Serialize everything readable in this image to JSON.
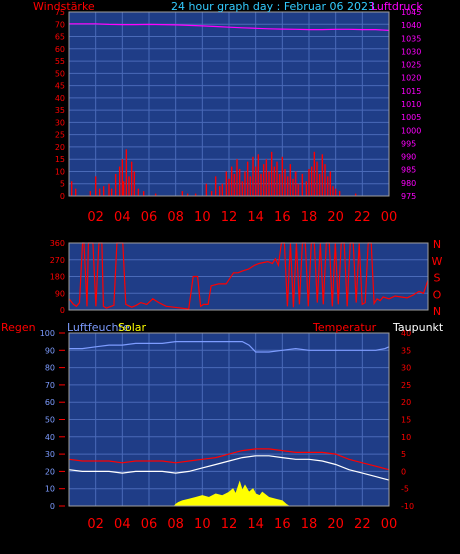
{
  "header": {
    "title": "24 hour graph day : Februar 06 2023",
    "left_label": "Windstärke",
    "right_label": "Luftdruck"
  },
  "colors": {
    "background": "#000000",
    "plot_bg": "#1f3d87",
    "grid": "#4a6ab8",
    "frame": "#a0a0a0",
    "red": "#ff0000",
    "magenta": "#ff00ff",
    "cyan": "#33ccff",
    "yellow": "#ffff00",
    "white": "#ffffff",
    "blue_humidity": "#7d9cff"
  },
  "chart_data": [
    {
      "id": "wind_pressure",
      "type": "line",
      "title": "24 hour graph day : Februar 06 2023",
      "ylabel_left": "Windstärke",
      "ylabel_right": "Luftdruck",
      "ylim_left": [
        0,
        75
      ],
      "ylim_right": [
        975,
        1045
      ],
      "y_ticks_left": [
        0,
        5,
        10,
        15,
        20,
        25,
        30,
        35,
        40,
        45,
        50,
        55,
        60,
        65,
        70,
        75
      ],
      "y_ticks_right": [
        975,
        980,
        985,
        990,
        995,
        1000,
        1005,
        1010,
        1015,
        1020,
        1025,
        1030,
        1035,
        1040,
        1045
      ],
      "x_ticks": [
        "02",
        "04",
        "06",
        "08",
        "10",
        "12",
        "14",
        "16",
        "18",
        "20",
        "22",
        "00"
      ],
      "series": [
        {
          "name": "Luftdruck",
          "axis": "right",
          "x": [
            0,
            1,
            2,
            3,
            4,
            5,
            6,
            7,
            8,
            9,
            10,
            11,
            12,
            13,
            14,
            15,
            16,
            17,
            18,
            19,
            20,
            21,
            22,
            23,
            24
          ],
          "values": [
            1040.5,
            1040.5,
            1040.5,
            1040.3,
            1040.2,
            1040.2,
            1040.3,
            1040.2,
            1040.1,
            1039.9,
            1039.7,
            1039.5,
            1039.2,
            1039.0,
            1038.8,
            1038.6,
            1038.5,
            1038.4,
            1038.3,
            1038.3,
            1038.4,
            1038.4,
            1038.3,
            1038.3,
            1038.0
          ]
        },
        {
          "name": "Windstärke",
          "axis": "left",
          "x": [
            0.2,
            0.5,
            1.6,
            2.0,
            2.3,
            2.6,
            3.0,
            3.2,
            3.5,
            3.8,
            4.0,
            4.1,
            4.3,
            4.5,
            4.7,
            4.9,
            5.2,
            5.6,
            6.5,
            8.5,
            8.9,
            9.5,
            10.3,
            10.7,
            11.0,
            11.3,
            11.5,
            11.8,
            12.0,
            12.2,
            12.4,
            12.6,
            12.8,
            13.0,
            13.2,
            13.4,
            13.6,
            13.8,
            14.0,
            14.2,
            14.4,
            14.6,
            14.8,
            15.0,
            15.2,
            15.4,
            15.6,
            15.8,
            16.0,
            16.2,
            16.4,
            16.6,
            16.8,
            17.0,
            17.2,
            17.5,
            17.8,
            18.0,
            18.2,
            18.4,
            18.6,
            18.8,
            19.0,
            19.2,
            19.4,
            19.6,
            19.8,
            20.0,
            20.3,
            21.5
          ],
          "values": [
            6,
            3,
            2,
            8,
            3,
            4,
            5,
            3,
            9,
            12,
            15,
            6,
            19,
            8,
            14,
            10,
            3,
            2,
            1,
            2,
            1,
            1,
            5,
            2,
            8,
            4,
            5,
            10,
            7,
            12,
            9,
            15,
            11,
            6,
            10,
            14,
            8,
            16,
            12,
            17,
            9,
            13,
            15,
            10,
            18,
            12,
            14,
            9,
            16,
            11,
            8,
            13,
            7,
            10,
            5,
            9,
            6,
            11,
            12,
            18,
            14,
            9,
            17,
            13,
            8,
            10,
            4,
            3,
            2,
            1
          ]
        }
      ]
    },
    {
      "id": "wind_direction",
      "type": "line",
      "ylim": [
        0,
        360
      ],
      "y_ticks": [
        0,
        90,
        180,
        270,
        360
      ],
      "compass_labels": [
        "N",
        "W",
        "S",
        "O",
        "N"
      ],
      "series": [
        {
          "name": "Windrichtung",
          "x": [
            0.0,
            0.3,
            0.5,
            0.7,
            0.9,
            1.0,
            1.2,
            1.3,
            1.6,
            1.8,
            2.0,
            2.2,
            2.3,
            2.5,
            3.0,
            3.2,
            3.6,
            3.8,
            4.2,
            4.5,
            4.8,
            5.2,
            5.6,
            6.0,
            6.5,
            7.0,
            7.5,
            8.0,
            8.3,
            8.6,
            8.8,
            9.0,
            9.3,
            9.5,
            10.0,
            10.5,
            11.0,
            11.3,
            11.6,
            12.0,
            12.4,
            12.7,
            13.0,
            13.3,
            13.6,
            13.8,
            14.0,
            14.2,
            14.4,
            14.6,
            14.8,
            15.0,
            15.2,
            15.4,
            15.6,
            15.8,
            16.0,
            16.2,
            16.4,
            16.6,
            16.8,
            17.0,
            17.2,
            17.4,
            17.6,
            17.8,
            18.0,
            18.2,
            18.4,
            18.6,
            18.8,
            19.0,
            19.2,
            19.4,
            19.6,
            19.8,
            20.0,
            20.2,
            20.4,
            20.6,
            20.8,
            21.0,
            21.4,
            21.8,
            22.2,
            22.6,
            23.0,
            23.4,
            23.7,
            24.0
          ],
          "values": [
            60,
            30,
            20,
            40,
            360,
            360,
            20,
            360,
            360,
            20,
            360,
            360,
            20,
            10,
            25,
            360,
            360,
            30,
            15,
            25,
            40,
            30,
            60,
            40,
            20,
            15,
            10,
            5,
            180,
            180,
            20,
            30,
            30,
            130,
            140,
            140,
            200,
            200,
            210,
            220,
            240,
            250,
            255,
            260,
            250,
            275,
            240,
            360,
            360,
            20,
            360,
            15,
            360,
            30,
            360,
            360,
            20,
            360,
            360,
            40,
            360,
            30,
            360,
            360,
            20,
            360,
            30,
            360,
            360,
            20,
            360,
            360,
            40,
            360,
            30,
            40,
            360,
            360,
            35,
            60,
            50,
            70,
            60,
            75,
            70,
            65,
            80,
            100,
            90,
            160
          ]
        }
      ]
    },
    {
      "id": "humidity_temperature",
      "type": "line",
      "ylim_left": [
        0,
        100
      ],
      "ylim_right": [
        -10,
        40
      ],
      "y_ticks_left": [
        0,
        10,
        20,
        30,
        40,
        50,
        60,
        70,
        80,
        90,
        100
      ],
      "y_ticks_right": [
        -10,
        -5,
        0,
        5,
        10,
        15,
        20,
        25,
        30,
        35,
        40
      ],
      "x_ticks": [
        "02",
        "04",
        "06",
        "08",
        "10",
        "12",
        "14",
        "16",
        "18",
        "20",
        "22",
        "00"
      ],
      "labels": {
        "regen": "Regen",
        "luftfeuchte": "Luftfeuchte",
        "solar": "Solar",
        "temperatur": "Temperatur",
        "taupunkt": "Taupunkt"
      },
      "series": [
        {
          "name": "Luftfeuchte",
          "axis": "left",
          "x": [
            0,
            1,
            2,
            3,
            4,
            5,
            6,
            7,
            8,
            9,
            10,
            11,
            12,
            13,
            13.5,
            14,
            15,
            16,
            17,
            18,
            19,
            20,
            21,
            22,
            23,
            23.7,
            24
          ],
          "values": [
            91,
            91,
            92,
            93,
            93,
            94,
            94,
            94,
            95,
            95,
            95,
            95,
            95,
            95,
            93,
            89,
            89,
            90,
            91,
            90,
            90,
            90,
            90,
            90,
            90,
            91,
            92
          ]
        },
        {
          "name": "Temperatur",
          "axis": "right",
          "x": [
            0,
            1,
            2,
            3,
            4,
            5,
            6,
            7,
            8,
            9,
            10,
            11,
            12,
            13,
            14,
            15,
            16,
            17,
            18,
            19,
            20,
            21,
            22,
            23,
            24
          ],
          "values": [
            3.5,
            3.0,
            3.0,
            3.0,
            2.5,
            3.0,
            3.0,
            3.0,
            2.5,
            3.0,
            3.5,
            4.0,
            5.0,
            6.0,
            6.5,
            6.5,
            6.0,
            5.5,
            5.5,
            5.5,
            5.0,
            3.5,
            2.5,
            1.5,
            0.5
          ]
        },
        {
          "name": "Taupunkt",
          "axis": "right",
          "x": [
            0,
            1,
            2,
            3,
            4,
            5,
            6,
            7,
            8,
            9,
            10,
            11,
            12,
            13,
            14,
            15,
            16,
            17,
            18,
            19,
            20,
            21,
            22,
            23,
            24
          ],
          "values": [
            0.5,
            0.0,
            0.0,
            0.0,
            -0.5,
            0.0,
            0.0,
            0.0,
            -0.5,
            0.0,
            1.0,
            2.0,
            3.0,
            4.0,
            4.5,
            4.5,
            4.0,
            3.5,
            3.5,
            3.0,
            2.0,
            0.5,
            -0.5,
            -1.5,
            -2.5
          ]
        },
        {
          "name": "Solar",
          "axis": "left",
          "x": [
            0,
            7.9,
            8.0,
            8.2,
            8.5,
            9.0,
            9.5,
            10.0,
            10.5,
            11.0,
            11.5,
            12.0,
            12.3,
            12.5,
            12.8,
            13.0,
            13.2,
            13.5,
            13.8,
            14.0,
            14.3,
            14.5,
            15.0,
            15.5,
            16.0,
            16.3,
            16.5,
            24
          ],
          "values": [
            0,
            0,
            1,
            2,
            3,
            4,
            5,
            6,
            5,
            7,
            6,
            8,
            10,
            7,
            14,
            9,
            12,
            8,
            10,
            7,
            6,
            8,
            5,
            4,
            3,
            1,
            0,
            0
          ]
        }
      ]
    }
  ]
}
